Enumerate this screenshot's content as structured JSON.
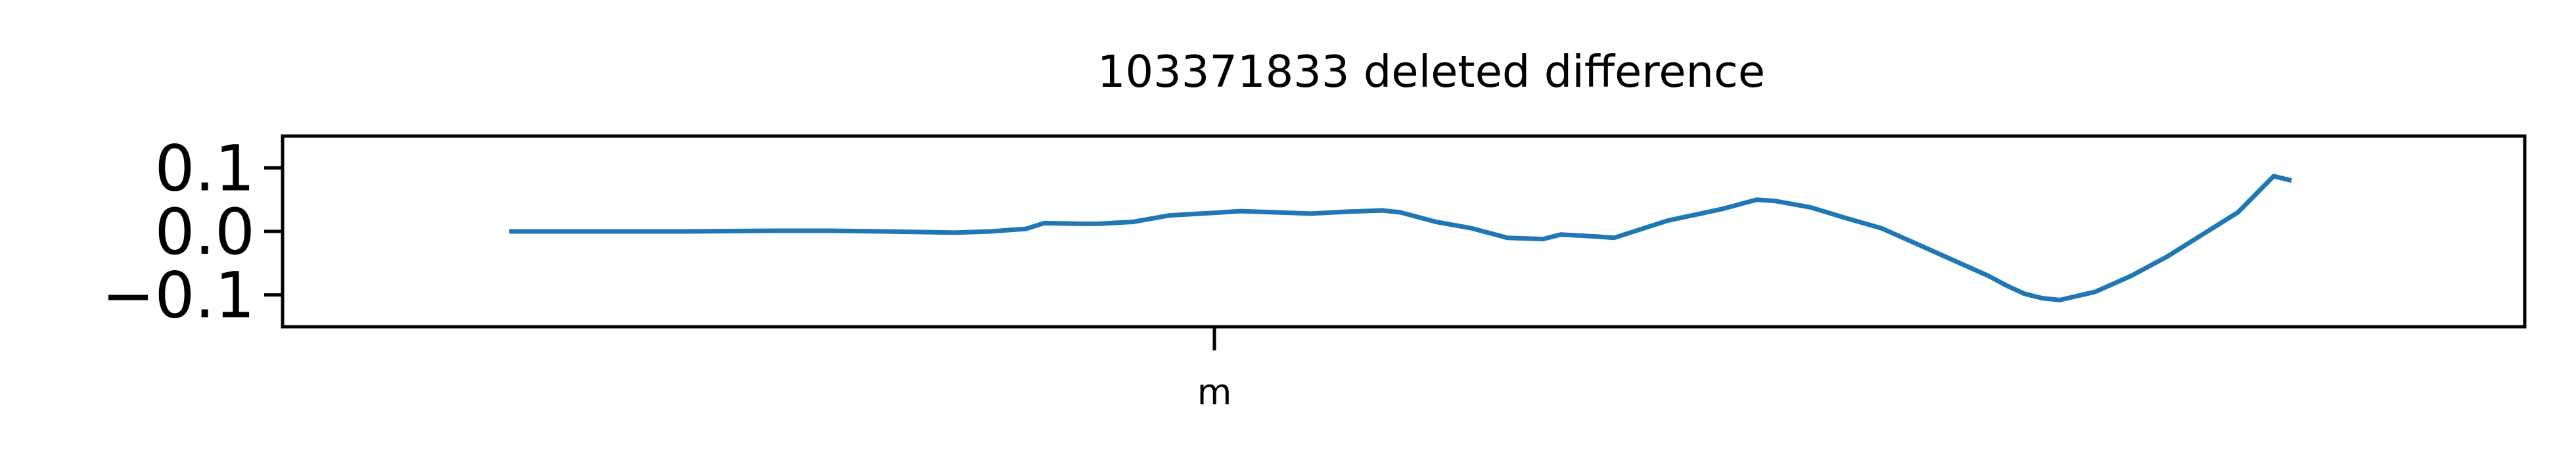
{
  "chart_data": {
    "type": "line",
    "title": "103371833 deleted difference",
    "xlabel": "",
    "ylabel": "",
    "x_ticks": [
      {
        "value": 0.4,
        "label": "m"
      }
    ],
    "y_ticks": [
      {
        "value": 0.1,
        "label": "0.1"
      },
      {
        "value": 0.0,
        "label": "0.0"
      },
      {
        "value": -0.1,
        "label": "−0.1"
      }
    ],
    "xlim": [
      0,
      1
    ],
    "ylim": [
      -0.15,
      0.15
    ],
    "grid": false,
    "series": [
      {
        "name": "difference",
        "color": "#1f77b4",
        "x": [
          0.0,
          0.05,
          0.1,
          0.15,
          0.18,
          0.21,
          0.25,
          0.27,
          0.29,
          0.3,
          0.32,
          0.33,
          0.35,
          0.37,
          0.4,
          0.41,
          0.43,
          0.45,
          0.47,
          0.49,
          0.5,
          0.52,
          0.54,
          0.56,
          0.58,
          0.59,
          0.61,
          0.62,
          0.65,
          0.68,
          0.7,
          0.71,
          0.73,
          0.75,
          0.77,
          0.79,
          0.81,
          0.83,
          0.84,
          0.85,
          0.86,
          0.87,
          0.89,
          0.91,
          0.93,
          0.95,
          0.97,
          0.99,
          1.0
        ],
        "y": [
          0.0,
          0.0,
          0.0,
          0.001,
          0.001,
          0.0,
          -0.002,
          0.0,
          0.004,
          0.013,
          0.012,
          0.012,
          0.015,
          0.025,
          0.03,
          0.032,
          0.03,
          0.028,
          0.031,
          0.033,
          0.03,
          0.015,
          0.005,
          -0.01,
          -0.012,
          -0.005,
          -0.008,
          -0.01,
          0.017,
          0.035,
          0.05,
          0.048,
          0.038,
          0.021,
          0.005,
          -0.02,
          -0.045,
          -0.07,
          -0.085,
          -0.098,
          -0.105,
          -0.108,
          -0.095,
          -0.07,
          -0.04,
          -0.005,
          0.03,
          0.087,
          0.08
        ]
      }
    ]
  }
}
